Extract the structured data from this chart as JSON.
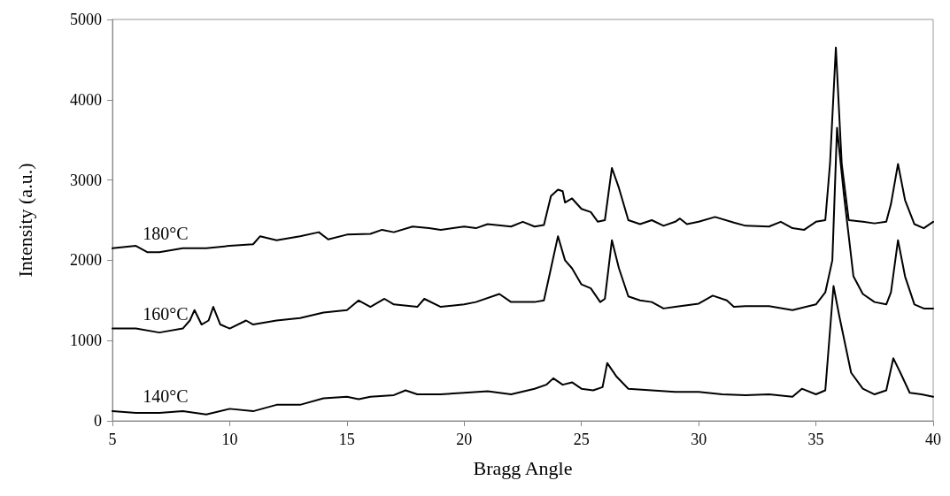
{
  "chart_data": {
    "type": "line",
    "xlabel": "Bragg Angle",
    "ylabel": "Intensity (a.u.)",
    "xlim": [
      5,
      40
    ],
    "xticks": [
      5,
      10,
      15,
      20,
      25,
      30,
      35,
      40
    ],
    "ylim": [
      0,
      5000
    ],
    "yticks": [
      0,
      1000,
      2000,
      3000,
      4000,
      5000
    ],
    "grid": false,
    "legend": false,
    "marker": "none",
    "line_style": "solid",
    "series": [
      {
        "name": "180°C",
        "color": "#000000",
        "x": [
          5,
          6,
          6.5,
          7,
          8,
          9,
          10,
          11,
          11.3,
          12,
          13,
          13.8,
          14.2,
          15,
          16,
          16.5,
          17,
          17.8,
          18.5,
          19,
          20,
          20.5,
          21,
          22,
          22.5,
          23,
          23.4,
          23.7,
          24,
          24.2,
          24.3,
          24.6,
          25,
          25.4,
          25.7,
          26,
          26.3,
          26.6,
          27,
          27.5,
          28,
          28.5,
          29,
          29.2,
          29.5,
          30,
          30.7,
          31.5,
          32,
          33,
          33.5,
          34,
          34.5,
          35,
          35.4,
          35.6,
          35.85,
          36.1,
          36.4,
          37,
          37.5,
          38,
          38.2,
          38.5,
          38.8,
          39.2,
          39.6,
          40
        ],
        "values": [
          2150,
          2180,
          2100,
          2100,
          2150,
          2150,
          2180,
          2200,
          2300,
          2250,
          2300,
          2350,
          2260,
          2320,
          2330,
          2380,
          2350,
          2420,
          2400,
          2380,
          2420,
          2400,
          2450,
          2420,
          2480,
          2420,
          2440,
          2800,
          2880,
          2860,
          2720,
          2770,
          2640,
          2600,
          2480,
          2500,
          3150,
          2900,
          2500,
          2450,
          2500,
          2430,
          2480,
          2520,
          2450,
          2480,
          2540,
          2470,
          2430,
          2420,
          2480,
          2400,
          2380,
          2480,
          2500,
          3200,
          4650,
          3200,
          2500,
          2480,
          2460,
          2480,
          2700,
          3200,
          2750,
          2450,
          2400,
          2480
        ]
      },
      {
        "name": "160°C",
        "color": "#000000",
        "x": [
          5,
          6,
          7,
          8,
          8.3,
          8.5,
          8.8,
          9.1,
          9.3,
          9.6,
          10,
          10.7,
          11,
          12,
          13,
          14,
          15,
          15.5,
          16,
          16.6,
          17,
          18,
          18.3,
          19,
          20,
          20.5,
          21.5,
          22,
          23,
          23.4,
          23.7,
          24,
          24.3,
          24.6,
          25,
          25.4,
          25.8,
          26,
          26.3,
          26.6,
          27,
          27.5,
          28,
          28.5,
          29,
          30,
          30.6,
          31.2,
          31.5,
          32,
          33,
          34,
          35,
          35.4,
          35.7,
          35.9,
          36.2,
          36.6,
          37,
          37.5,
          38,
          38.2,
          38.5,
          38.8,
          39.2,
          39.6,
          40
        ],
        "values": [
          1150,
          1150,
          1100,
          1150,
          1250,
          1380,
          1200,
          1250,
          1420,
          1200,
          1150,
          1250,
          1200,
          1250,
          1280,
          1350,
          1380,
          1500,
          1420,
          1520,
          1450,
          1420,
          1520,
          1420,
          1450,
          1480,
          1580,
          1480,
          1480,
          1500,
          1900,
          2300,
          2000,
          1900,
          1700,
          1650,
          1480,
          1520,
          2250,
          1900,
          1550,
          1500,
          1480,
          1400,
          1420,
          1460,
          1560,
          1500,
          1420,
          1430,
          1430,
          1380,
          1450,
          1600,
          2000,
          3650,
          2800,
          1800,
          1580,
          1480,
          1450,
          1600,
          2250,
          1800,
          1450,
          1400,
          1400
        ]
      },
      {
        "name": "140°C",
        "color": "#000000",
        "x": [
          5,
          6,
          7,
          8,
          9,
          10,
          11,
          12,
          13,
          14,
          15,
          15.5,
          16,
          17,
          17.5,
          18,
          19,
          20,
          21,
          22,
          23,
          23.5,
          23.8,
          24.2,
          24.6,
          25,
          25.5,
          25.9,
          26.1,
          26.5,
          27,
          28,
          29,
          30,
          31,
          32,
          33,
          34,
          34.4,
          35,
          35.4,
          35.75,
          36,
          36.5,
          37,
          37.5,
          38,
          38.3,
          38.6,
          39,
          39.5,
          40
        ],
        "values": [
          120,
          100,
          100,
          120,
          80,
          150,
          120,
          200,
          200,
          280,
          300,
          270,
          300,
          320,
          380,
          330,
          330,
          350,
          370,
          330,
          400,
          450,
          530,
          450,
          480,
          400,
          380,
          420,
          720,
          550,
          400,
          380,
          360,
          360,
          330,
          320,
          330,
          300,
          400,
          330,
          380,
          1680,
          1300,
          600,
          400,
          330,
          380,
          780,
          600,
          350,
          330,
          300
        ]
      }
    ]
  }
}
